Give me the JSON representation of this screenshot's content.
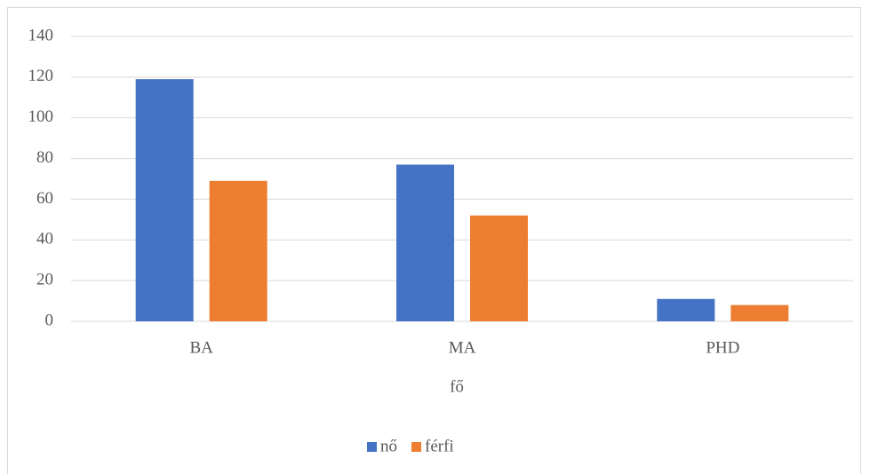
{
  "chart_data": {
    "type": "bar",
    "categories": [
      "BA",
      "MA",
      "PHD"
    ],
    "series": [
      {
        "name": "nő",
        "color": "#4472c4",
        "values": [
          119,
          77,
          11
        ]
      },
      {
        "name": "férfi",
        "color": "#ed7d31",
        "values": [
          69,
          52,
          8
        ]
      }
    ],
    "x_label": "fő",
    "ylim": [
      0,
      140
    ],
    "yticks": [
      0,
      20,
      40,
      60,
      80,
      100,
      120,
      140
    ],
    "grid": true,
    "legend": "bottom"
  }
}
